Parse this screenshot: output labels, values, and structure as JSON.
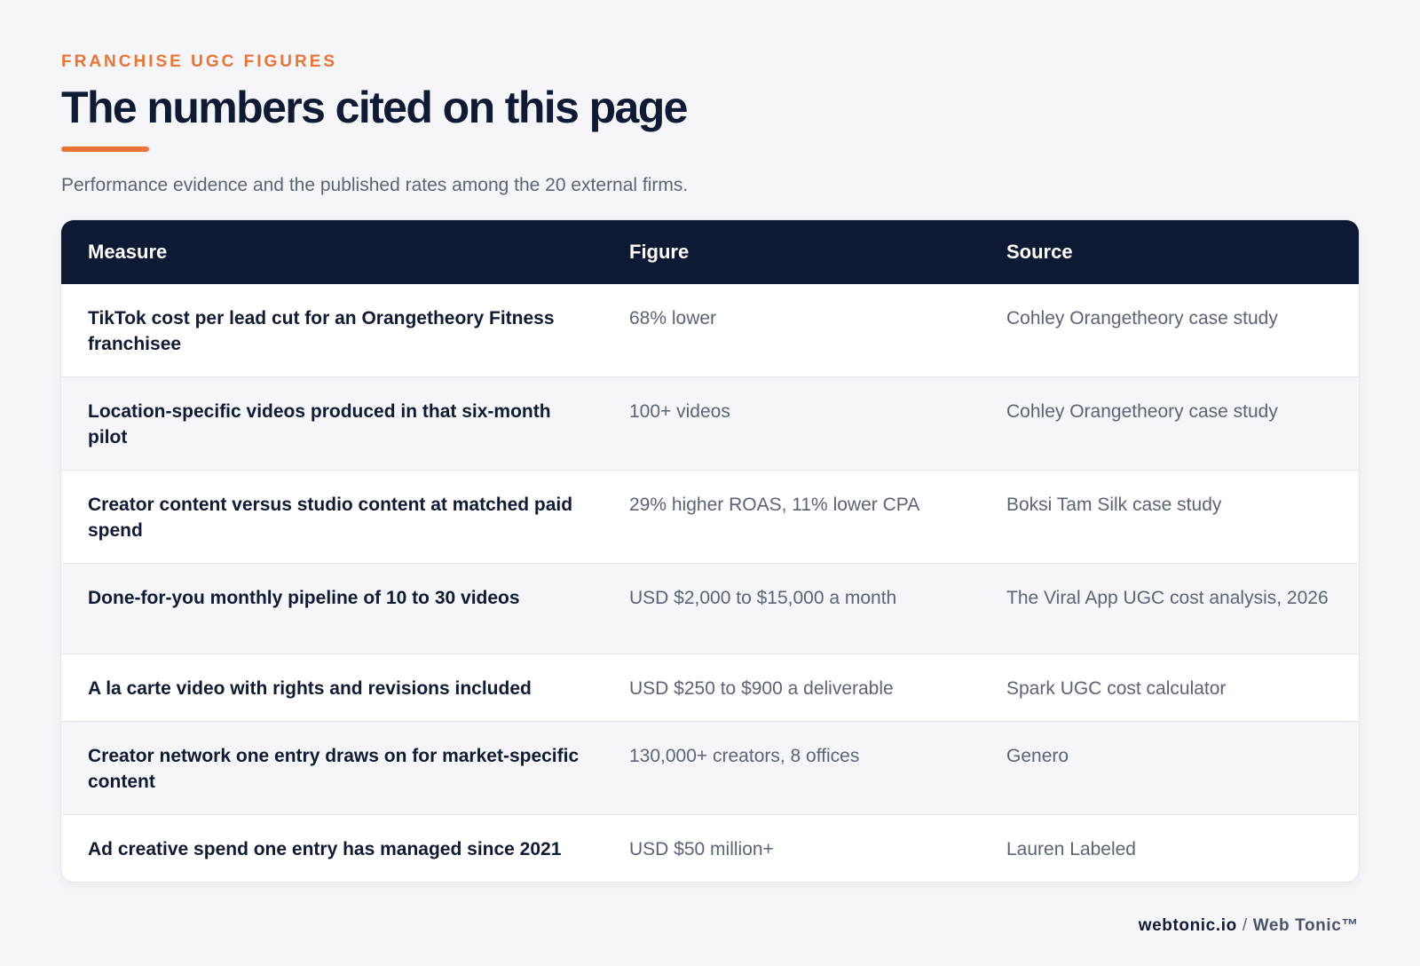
{
  "header": {
    "eyebrow": "FRANCHISE UGC FIGURES",
    "title": "The numbers cited on this page",
    "subtitle": "Performance evidence and the published rates among the 20 external firms."
  },
  "table": {
    "columns": [
      "Measure",
      "Figure",
      "Source"
    ],
    "rows": [
      {
        "measure": "TikTok cost per lead cut for an Orangetheory Fitness franchisee",
        "figure": "68% lower",
        "source": "Cohley Orangetheory case study"
      },
      {
        "measure": "Location-specific videos produced in that six-month pilot",
        "figure": "100+ videos",
        "source": "Cohley Orangetheory case study"
      },
      {
        "measure": "Creator content versus studio content at matched paid spend",
        "figure": "29% higher ROAS, 11% lower CPA",
        "source": "Boksi Tam Silk case study"
      },
      {
        "measure": "Done-for-you monthly pipeline of 10 to 30 videos",
        "figure": "USD $2,000 to $15,000 a month",
        "source": "The Viral App UGC cost analysis, 2026"
      },
      {
        "measure": "A la carte video with rights and revisions included",
        "figure": "USD $250 to $900 a deliverable",
        "source": "Spark UGC cost calculator"
      },
      {
        "measure": "Creator network one entry draws on for market-specific content",
        "figure": "130,000+ creators, 8 offices",
        "source": "Genero"
      },
      {
        "measure": "Ad creative spend one entry has managed since 2021",
        "figure": "USD $50 million+",
        "source": "Lauren Labeled"
      }
    ]
  },
  "footer": {
    "domain": "webtonic.io",
    "separator": "/",
    "brand": "Web Tonic™"
  },
  "colors": {
    "accent": "#ed7433",
    "navy": "#0e1a33",
    "muted_text": "#5b6476",
    "background": "#f4f6f9"
  }
}
